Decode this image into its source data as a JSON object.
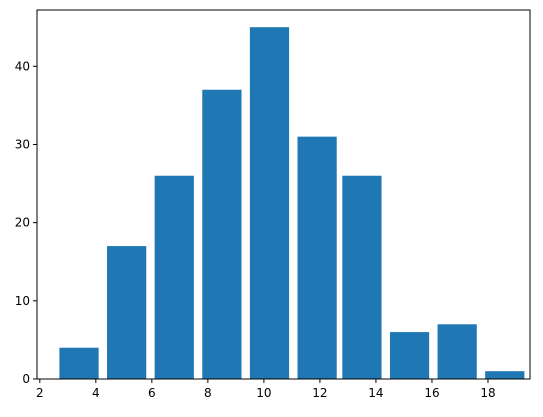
{
  "chart_data": {
    "type": "bar",
    "x": [
      3.4,
      5.1,
      6.8,
      8.5,
      10.2,
      11.9,
      13.5,
      15.2,
      16.9,
      18.6
    ],
    "values": [
      4,
      17,
      26,
      37,
      45,
      31,
      26,
      6,
      7,
      1
    ],
    "bar_width": 1.4,
    "xlim": [
      1.9,
      19.5
    ],
    "ylim": [
      0,
      47.2
    ],
    "xticks": [
      2,
      4,
      6,
      8,
      10,
      12,
      14,
      16,
      18
    ],
    "yticks": [
      0,
      10,
      20,
      30,
      40
    ],
    "title": "",
    "xlabel": "",
    "ylabel": "",
    "grid": false,
    "bar_color": "#1f77b4"
  }
}
